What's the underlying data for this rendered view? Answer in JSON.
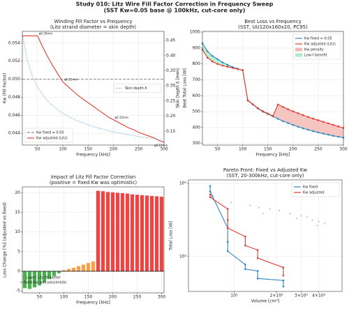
{
  "figure": {
    "title": "Study 010: Litz Wire Fill Factor Correction in Frequency Sweep",
    "subtitle": "(SST Kw=0.05 base @ 100kHz, cut-core only)"
  },
  "chart_data": [
    {
      "type": "line",
      "title": "Winding Fill Factor vs Frequency",
      "subtitle": "(Litz strand diameter = skin depth)",
      "xlabel": "Frequency [kHz]",
      "ylabel": "Kw (Fill Factor)",
      "y2label": "Skin Depth δ [mm]",
      "y2color": "#3498db",
      "x": [
        20,
        30,
        40,
        50,
        60,
        70,
        80,
        90,
        100,
        110,
        120,
        130,
        140,
        150,
        160,
        170,
        180,
        190,
        200,
        210,
        220,
        230,
        240,
        250,
        260,
        270,
        280,
        290,
        300
      ],
      "hlines": [
        {
          "name": "Kw fixed = 0.05",
          "color": "#888888",
          "y": 0.05,
          "style": "dashed"
        }
      ],
      "series": [
        {
          "name": "Kw adjusted (Litz)",
          "color": "#e03c31",
          "values": [
            0.0548,
            0.0548,
            0.0548,
            0.0548,
            0.0536,
            0.0525,
            0.0515,
            0.0506,
            0.0497,
            0.0492,
            0.0487,
            0.0482,
            0.0478,
            0.0474,
            0.047,
            0.0466,
            0.0462,
            0.0458,
            0.0455,
            0.0452,
            0.0449,
            0.0446,
            0.0444,
            0.0441,
            0.0439,
            0.0437,
            0.0435,
            0.0432,
            0.043
          ]
        },
        {
          "name": "Skin depth δ",
          "color": "#5dade2",
          "axis": "y2",
          "style": "dotted",
          "values": [
            0.47,
            0.384,
            0.332,
            0.297,
            0.271,
            0.251,
            0.235,
            0.222,
            0.21,
            0.2,
            0.192,
            0.184,
            0.178,
            0.172,
            0.166,
            0.161,
            0.157,
            0.152,
            0.149,
            0.145,
            0.142,
            0.139,
            0.136,
            0.133,
            0.13,
            0.128,
            0.126,
            0.123,
            0.121
          ]
        }
      ],
      "annotations": [
        {
          "text": "φ0.30mm",
          "x": 50
        },
        {
          "text": "φ0.21mm",
          "x": 100
        },
        {
          "text": "φ0.15mm",
          "x": 200
        },
        {
          "text": "φ0.12mm",
          "x": 300
        }
      ],
      "xlim": [
        20,
        300
      ],
      "xticks": [
        50,
        100,
        150,
        200,
        250,
        300
      ],
      "ylim": [
        0.0427,
        0.0553
      ],
      "yticks": [
        0.044,
        0.046,
        0.048,
        {
          "value": 0.05,
          "label": "0.050"
        },
        0.052,
        0.054
      ],
      "y2lim": [
        0.105,
        0.48
      ],
      "y2ticks": [
        0.15,
        {
          "value": 0.2,
          "label": "0.20"
        },
        0.25,
        {
          "value": 0.3,
          "label": "0.30"
        },
        0.35,
        {
          "value": 0.4,
          "label": "0.40"
        },
        0.45
      ],
      "grid": true,
      "legend": "lower left",
      "legend2": "center right"
    },
    {
      "type": "line",
      "title": "Best Loss vs Frequency",
      "subtitle": "(SST, UU120x160x20, PC95)",
      "xlabel": "Frequency [kHz]",
      "ylabel": "Best Total Loss [W]",
      "x": [
        20,
        30,
        40,
        50,
        60,
        70,
        80,
        90,
        100,
        110,
        120,
        130,
        140,
        150,
        160,
        170,
        180,
        190,
        200,
        210,
        220,
        230,
        240,
        250,
        260,
        270,
        280,
        290,
        300
      ],
      "series": [
        {
          "name": "Kw fixed = 0.05",
          "color": "#2e86c1",
          "marker": true,
          "values": [
            930,
            880,
            850,
            830,
            810,
            795,
            780,
            770,
            760,
            570,
            545,
            520,
            500,
            485,
            470,
            455,
            440,
            428,
            416,
            405,
            395,
            386,
            377,
            369,
            362,
            355,
            348,
            342,
            336
          ]
        },
        {
          "name": "Kw adjusted (Litz)",
          "color": "#e03c31",
          "marker": true,
          "values": [
            890,
            840,
            815,
            800,
            790,
            782,
            775,
            768,
            762,
            572,
            547,
            522,
            503,
            488,
            473,
            545,
            530,
            515,
            502,
            490,
            478,
            467,
            456,
            446,
            436,
            426,
            417,
            407,
            398
          ]
        }
      ],
      "fills": [
        {
          "name": "Kw penalty",
          "color": "#f5b7b1"
        },
        {
          "name": "Low-f benefit",
          "color": "#abebc6"
        }
      ],
      "xlim": [
        20,
        300
      ],
      "xticks": [
        50,
        100,
        150,
        200,
        250,
        300
      ],
      "ylim": [
        290,
        1005
      ],
      "yticks": [
        300,
        400,
        500,
        600,
        700,
        800,
        900,
        1000
      ],
      "grid": true,
      "legend": "upper right"
    },
    {
      "type": "bar",
      "title": "Impact of Litz Fill Factor Correction",
      "subtitle": "(positive = fixed Kw was optimistic)",
      "xlabel": "Frequency [kHz]",
      "ylabel": "Loss Change [%] (adjusted vs fixed)",
      "x": [
        20,
        30,
        40,
        50,
        60,
        70,
        80,
        90,
        100,
        110,
        120,
        130,
        140,
        150,
        160,
        170,
        180,
        190,
        200,
        210,
        220,
        230,
        240,
        250,
        260,
        270,
        280,
        290,
        300
      ],
      "values": [
        -4.3,
        -4.5,
        -4.1,
        -3.6,
        -2.8,
        -2.0,
        -1.2,
        -0.5,
        0.3,
        0.6,
        0.9,
        1.3,
        1.7,
        2.1,
        2.5,
        20.5,
        20.4,
        20.2,
        20.1,
        20.0,
        19.9,
        19.8,
        19.6,
        19.5,
        19.4,
        19.3,
        19.2,
        19.1,
        19.0
      ],
      "colors": [
        "#4caf50",
        "#4caf50",
        "#4caf50",
        "#4caf50",
        "#4caf50",
        "#4caf50",
        "#4caf50",
        "#4caf50",
        "#f5a04a",
        "#f5a04a",
        "#f5a04a",
        "#f5a04a",
        "#f5a04a",
        "#f5a04a",
        "#f5a04a",
        "#ef4444",
        "#ef4444",
        "#ef4444",
        "#ef4444",
        "#ef4444",
        "#ef4444",
        "#ef4444",
        "#ef4444",
        "#ef4444",
        "#ef4444",
        "#ef4444",
        "#ef4444",
        "#ef4444",
        "#ef4444"
      ],
      "notes": [
        {
          "text": "Low-f: Litz fill better",
          "color": "#2e9e3e"
        },
        {
          "text": "→ fixed Kw was pessimistic",
          "color": "#2e9e3e"
        }
      ],
      "xlim": [
        15,
        305
      ],
      "xticks": [
        50,
        100,
        150,
        200,
        250,
        300
      ],
      "ylim": [
        -5.5,
        21.5
      ],
      "yticks": [
        -5,
        0,
        5,
        10,
        15,
        20
      ],
      "grid": true
    },
    {
      "type": "line",
      "title": "Pareto Front: Fixed vs Adjusted Kw",
      "subtitle": "(SST, 20-300kHz, cut-core only)",
      "xlabel": "Volume [cm³]",
      "ylabel": "Total Loss [W]",
      "xlog": true,
      "ylog": true,
      "background": {
        "color": "#c8c8c8",
        "x": [
          700,
          950,
          1300,
          1500,
          1800,
          2100,
          2500,
          3000,
          3300,
          3600,
          4000,
          4400,
          1600,
          2800,
          3900
        ],
        "y": [
          4000,
          3000,
          2500,
          2200,
          2000,
          1800,
          1500,
          1300,
          1200,
          1000,
          900,
          800,
          1500,
          1100,
          700
        ]
      },
      "series": [
        {
          "name": "Kw fixed",
          "color": "#2e86c1",
          "marker": true,
          "x": [
            675,
            675,
            700,
            900,
            900,
            900,
            1200,
            1200,
            1470,
            1470,
            2240,
            2240
          ],
          "values": [
            8500,
            6000,
            4500,
            600,
            250,
            140,
            60,
            45,
            40,
            25,
            22,
            15
          ]
        },
        {
          "name": "Kw adjusted",
          "color": "#e03c31",
          "marker": true,
          "x": [
            675,
            675,
            900,
            900,
            900,
            1200,
            1200,
            1470,
            1470,
            2240,
            2240
          ],
          "values": [
            5000,
            4200,
            2000,
            1000,
            600,
            350,
            200,
            150,
            90,
            50,
            30
          ]
        }
      ],
      "xlim": [
        473,
        5860
      ],
      "xticks": [
        {
          "value": 1000,
          "label": "10³"
        },
        {
          "value": 2000,
          "label": "2×10³"
        },
        {
          "value": 3000,
          "label": "3×10³"
        },
        {
          "value": 4000,
          "label": "4×10³"
        }
      ],
      "ylim": [
        11,
        12500
      ],
      "yticks": [
        {
          "value": 100,
          "label": "10²"
        },
        {
          "value": 10000,
          "label": "10⁴"
        }
      ],
      "grid": true,
      "legend": "upper right"
    }
  ]
}
